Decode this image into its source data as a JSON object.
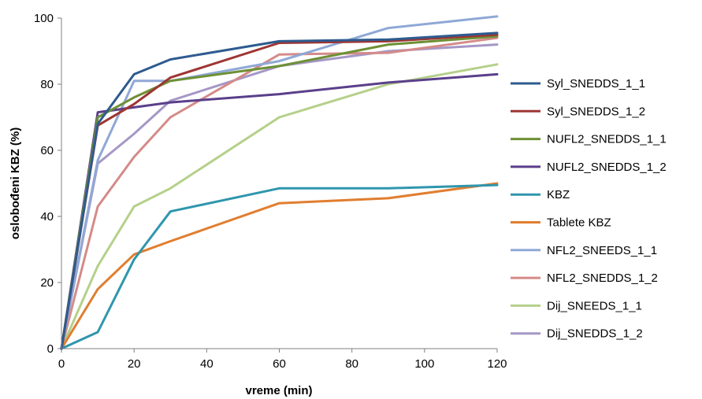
{
  "chart_data": {
    "type": "line",
    "xlabel": "vreme (min)",
    "ylabel": "oslobođeni KBZ (%)",
    "xlim": [
      0,
      120
    ],
    "ylim": [
      0,
      100
    ],
    "xticks": [
      0,
      20,
      40,
      60,
      80,
      100,
      120
    ],
    "yticks": [
      0,
      20,
      40,
      60,
      80,
      100
    ],
    "grid": false,
    "legend_position": "right",
    "x": [
      0,
      10,
      20,
      30,
      60,
      90,
      120
    ],
    "series": [
      {
        "name": "Syl_SNEDDS_1_1",
        "color": "#2e5b8f",
        "values": [
          0,
          68,
          83,
          87.5,
          93,
          93.5,
          95.5
        ]
      },
      {
        "name": "Syl_SNEDDS_1_2",
        "color": "#9e3532",
        "values": [
          0,
          67.5,
          74,
          82,
          92.5,
          93,
          95
        ]
      },
      {
        "name": "NUFL2_SNEDDS_1_1",
        "color": "#6d9035",
        "values": [
          0,
          70,
          76,
          81,
          85.5,
          92,
          94.5
        ]
      },
      {
        "name": "NUFL2_SNEDDS_1_2",
        "color": "#5b3f8a",
        "values": [
          0,
          71.5,
          73,
          74.5,
          77,
          80.5,
          83
        ]
      },
      {
        "name": "KBZ",
        "color": "#2f96ad",
        "values": [
          0,
          5,
          27,
          41.5,
          48.5,
          48.5,
          49.5
        ]
      },
      {
        "name": "Tablete KBZ",
        "color": "#e07e30",
        "values": [
          0,
          18,
          28.5,
          32.5,
          44,
          45.5,
          50
        ]
      },
      {
        "name": "NFL2_SNEEDS_1_1",
        "color": "#8fa8d6",
        "values": [
          0,
          57,
          81,
          81,
          87,
          97,
          100.5
        ]
      },
      {
        "name": "NFL2_SNEDDS_1_2",
        "color": "#d48b88",
        "values": [
          0,
          43,
          58,
          70,
          89,
          89.5,
          94
        ]
      },
      {
        "name": "Dij_SNEEDS_1_1",
        "color": "#b5d08a",
        "values": [
          0,
          25,
          43,
          48.5,
          70,
          80,
          86
        ]
      },
      {
        "name": "Dij_SNEDDS_1_2",
        "color": "#a597c6",
        "values": [
          0,
          56,
          65,
          75,
          85.5,
          90,
          92
        ]
      }
    ]
  }
}
